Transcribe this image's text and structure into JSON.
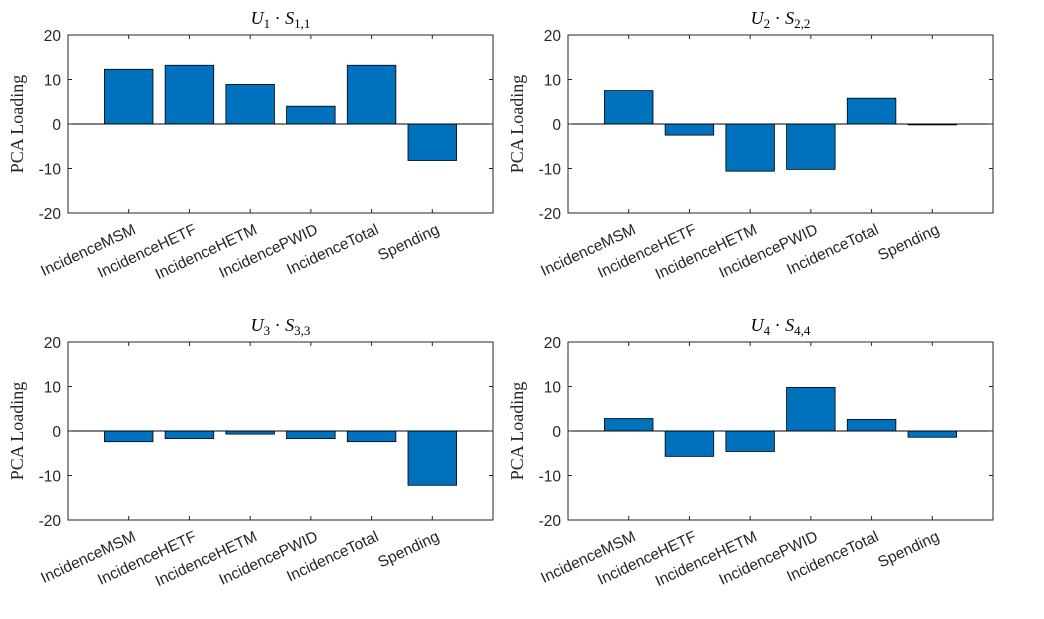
{
  "colors": {
    "bar": "#0072BD",
    "bar_edge": "#000000",
    "axis": "#262626",
    "zero_line": "#000000"
  },
  "chart_data": [
    {
      "type": "bar",
      "title": {
        "u": "U",
        "u_sub": "1",
        "dot": "·",
        "s": "S",
        "s_sub": "1,1"
      },
      "ylabel": "PCA Loading",
      "xlabel": "",
      "ylim": [
        -20,
        20
      ],
      "yticks": [
        "20",
        "10",
        "0",
        "-10",
        "-20"
      ],
      "grid": false,
      "categories": [
        "IncidenceMSM",
        "IncidenceHETF",
        "IncidenceHETM",
        "IncidencePWID",
        "IncidenceTotal",
        "Spending"
      ],
      "values": [
        12.3,
        13.2,
        8.9,
        4.0,
        13.2,
        -8.2
      ]
    },
    {
      "type": "bar",
      "title": {
        "u": "U",
        "u_sub": "2",
        "dot": "·",
        "s": "S",
        "s_sub": "2,2"
      },
      "ylabel": "PCA Loading",
      "xlabel": "",
      "ylim": [
        -20,
        20
      ],
      "yticks": [
        "20",
        "10",
        "0",
        "-10",
        "-20"
      ],
      "grid": false,
      "categories": [
        "IncidenceMSM",
        "IncidenceHETF",
        "IncidenceHETM",
        "IncidencePWID",
        "IncidenceTotal",
        "Spending"
      ],
      "values": [
        7.5,
        -2.5,
        -10.6,
        -10.2,
        5.8,
        -0.2
      ]
    },
    {
      "type": "bar",
      "title": {
        "u": "U",
        "u_sub": "3",
        "dot": "·",
        "s": "S",
        "s_sub": "3,3"
      },
      "ylabel": "PCA Loading",
      "xlabel": "",
      "ylim": [
        -20,
        20
      ],
      "yticks": [
        "20",
        "10",
        "0",
        "-10",
        "-20"
      ],
      "grid": false,
      "categories": [
        "IncidenceMSM",
        "IncidenceHETF",
        "IncidenceHETM",
        "IncidencePWID",
        "IncidenceTotal",
        "Spending"
      ],
      "values": [
        -2.4,
        -1.7,
        -0.7,
        -1.7,
        -2.4,
        -12.2
      ]
    },
    {
      "type": "bar",
      "title": {
        "u": "U",
        "u_sub": "4",
        "dot": "·",
        "s": "S",
        "s_sub": "4,4"
      },
      "ylabel": "PCA Loading",
      "xlabel": "",
      "ylim": [
        -20,
        20
      ],
      "yticks": [
        "20",
        "10",
        "0",
        "-10",
        "-20"
      ],
      "grid": false,
      "categories": [
        "IncidenceMSM",
        "IncidenceHETF",
        "IncidenceHETM",
        "IncidencePWID",
        "IncidenceTotal",
        "Spending"
      ],
      "values": [
        2.8,
        -5.7,
        -4.6,
        9.8,
        2.6,
        -1.4
      ]
    }
  ]
}
